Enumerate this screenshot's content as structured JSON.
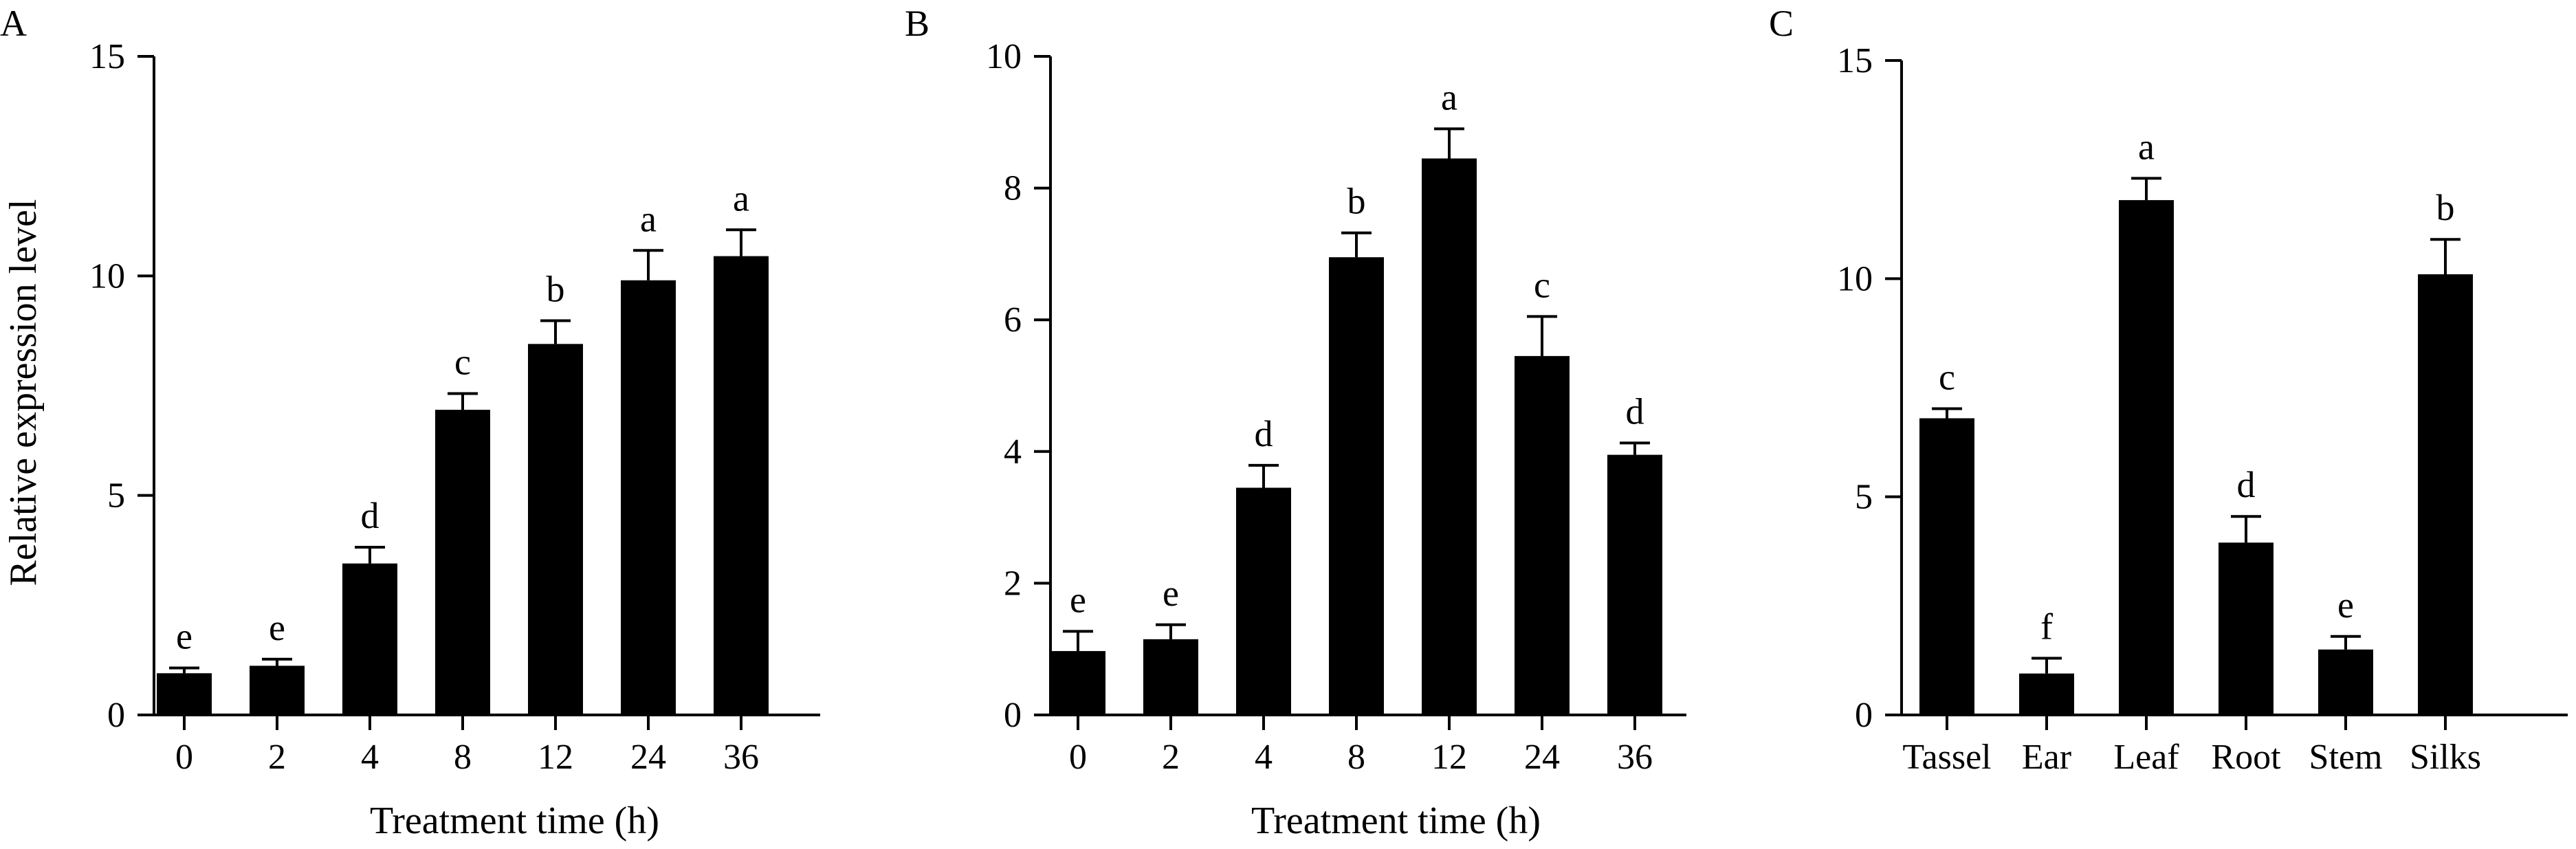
{
  "chart_data": [
    {
      "type": "bar",
      "panel_label": "A",
      "title": "",
      "xlabel": "Treatment time (h)",
      "ylabel": "Relative expression level",
      "ylim": [
        0,
        15
      ],
      "yticks": [
        0,
        5,
        10,
        15
      ],
      "categories": [
        "0",
        "2",
        "4",
        "8",
        "12",
        "24",
        "36"
      ],
      "values": [
        0.95,
        1.12,
        3.45,
        6.95,
        8.45,
        9.9,
        10.45
      ],
      "errors": [
        0.12,
        0.15,
        0.37,
        0.37,
        0.53,
        0.68,
        0.6
      ],
      "significance": [
        "e",
        "e",
        "d",
        "c",
        "b",
        "a",
        "a"
      ],
      "grid": false
    },
    {
      "type": "bar",
      "panel_label": "B",
      "title": "",
      "xlabel": "Treatment time (h)",
      "ylabel": "",
      "ylim": [
        0,
        10
      ],
      "yticks": [
        0,
        2,
        4,
        6,
        8,
        10
      ],
      "categories": [
        "0",
        "2",
        "4",
        "8",
        "12",
        "24",
        "36"
      ],
      "values": [
        0.97,
        1.15,
        3.45,
        6.95,
        8.45,
        5.45,
        3.95
      ],
      "errors": [
        0.3,
        0.22,
        0.34,
        0.37,
        0.45,
        0.6,
        0.18
      ],
      "significance": [
        "e",
        "e",
        "d",
        "b",
        "a",
        "c",
        "d"
      ],
      "grid": false
    },
    {
      "type": "bar",
      "panel_label": "C",
      "title": "",
      "xlabel": "",
      "ylabel": "",
      "ylim": [
        0,
        15
      ],
      "yticks": [
        0,
        5,
        10,
        15
      ],
      "categories": [
        "Tassel",
        "Ear",
        "Leaf",
        "Root",
        "Stem",
        "Silks"
      ],
      "values": [
        6.8,
        0.95,
        11.8,
        3.95,
        1.5,
        10.1
      ],
      "errors": [
        0.22,
        0.35,
        0.5,
        0.6,
        0.3,
        0.8
      ],
      "significance": [
        "c",
        "f",
        "a",
        "d",
        "e",
        "b"
      ],
      "grid": false
    }
  ]
}
